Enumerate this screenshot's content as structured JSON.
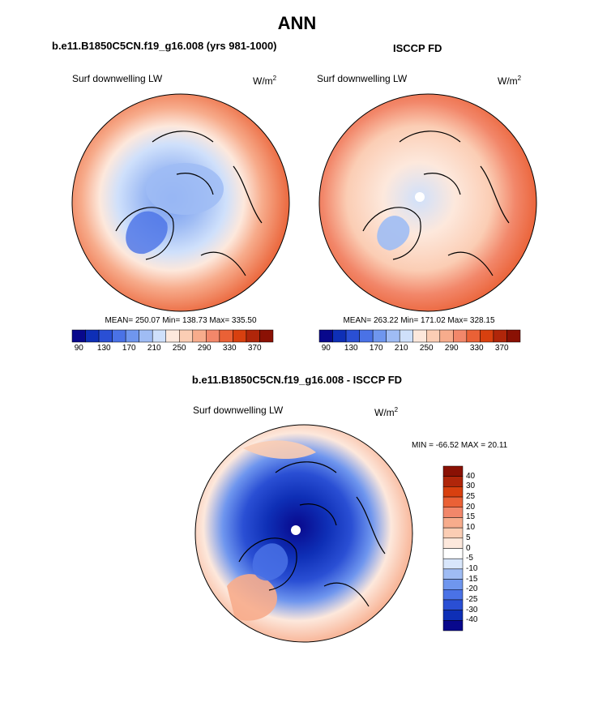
{
  "page_title": "ANN",
  "colors": {
    "seq": [
      "#08088c",
      "#0e2fb6",
      "#2a4fd4",
      "#4a72e6",
      "#6f96ee",
      "#9fbcf4",
      "#cfe0fb",
      "#fde8dc",
      "#fbcdb4",
      "#f7ac8c",
      "#f2876a",
      "#ea6136",
      "#d8400f",
      "#b0260a",
      "#8a1104"
    ],
    "diff": [
      "#08088c",
      "#0e2fb6",
      "#2a4fd4",
      "#4a72e6",
      "#6f96ee",
      "#9fbcf4",
      "#d8e6fb",
      "#ffffff",
      "#fde8dc",
      "#fbcdb4",
      "#f7ac8c",
      "#f2876a",
      "#ea6136",
      "#d8400f",
      "#b0260a",
      "#8a1104"
    ],
    "land": "#000000"
  },
  "panels": {
    "model": {
      "title": "b.e11.B1850C5CN.f19_g16.008 (yrs 981-1000)",
      "variable": "Surf downwelling LW",
      "units_base": "W/m",
      "units_sup": "2",
      "stats": "MEAN= 250.07  Min= 138.73  Max= 335.50"
    },
    "obs": {
      "title": "ISCCP FD",
      "variable": "Surf downwelling LW",
      "units_base": "W/m",
      "units_sup": "2",
      "stats": "MEAN= 263.22  Min= 171.02  Max= 328.15"
    },
    "diff": {
      "title": "b.e11.B1850C5CN.f19_g16.008 - ISCCP FD",
      "variable": "Surf downwelling LW",
      "units_base": "W/m",
      "units_sup": "2",
      "stats": "MIN = -66.52 MAX =  20.11"
    }
  },
  "colorbar_seq_ticks": [
    "90",
    "130",
    "170",
    "210",
    "250",
    "290",
    "330",
    "370"
  ],
  "colorbar_diff_ticks": [
    "40",
    "30",
    "25",
    "20",
    "15",
    "10",
    "5",
    "0",
    "-5",
    "-10",
    "-15",
    "-20",
    "-25",
    "-30",
    "-40"
  ],
  "chart_data": [
    {
      "type": "heatmap",
      "title": "b.e11.B1850C5CN.f19_g16.008 (yrs 981-1000)",
      "subtitle": "Surf downwelling LW",
      "units": "W/m2",
      "projection": "north polar stereographic",
      "stats": {
        "mean": 250.07,
        "min": 138.73,
        "max": 335.5
      },
      "contour_levels": [
        90,
        110,
        130,
        150,
        170,
        190,
        210,
        230,
        250,
        270,
        290,
        310,
        330,
        350,
        370
      ]
    },
    {
      "type": "heatmap",
      "title": "ISCCP FD",
      "subtitle": "Surf downwelling LW",
      "units": "W/m2",
      "projection": "north polar stereographic",
      "stats": {
        "mean": 263.22,
        "min": 171.02,
        "max": 328.15
      },
      "contour_levels": [
        90,
        110,
        130,
        150,
        170,
        190,
        210,
        230,
        250,
        270,
        290,
        310,
        330,
        350,
        370
      ]
    },
    {
      "type": "heatmap",
      "title": "b.e11.B1850C5CN.f19_g16.008 - ISCCP FD",
      "subtitle": "Surf downwelling LW",
      "units": "W/m2",
      "projection": "north polar stereographic",
      "stats": {
        "min": -66.52,
        "max": 20.11
      },
      "contour_levels": [
        -40,
        -30,
        -25,
        -20,
        -15,
        -10,
        -5,
        0,
        5,
        10,
        15,
        20,
        25,
        30,
        40
      ]
    }
  ]
}
